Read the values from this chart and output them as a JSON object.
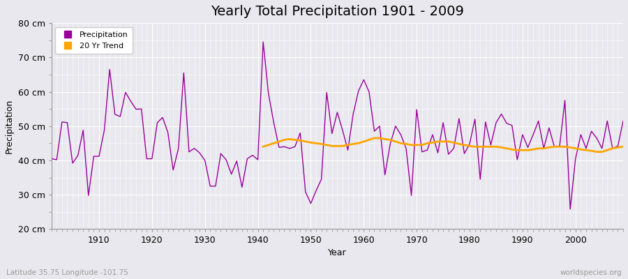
{
  "title": "Yearly Total Precipitation 1901 - 2009",
  "xlabel": "Year",
  "ylabel": "Precipitation",
  "subtitle": "Latitude 35.75 Longitude -101.75",
  "watermark": "worldspecies.org",
  "ylim": [
    20,
    80
  ],
  "yticks": [
    20,
    30,
    40,
    50,
    60,
    70,
    80
  ],
  "ytick_labels": [
    "20 cm",
    "30 cm",
    "40 cm",
    "50 cm",
    "60 cm",
    "70 cm",
    "80 cm"
  ],
  "xlim": [
    1901,
    2009
  ],
  "xticks": [
    1910,
    1920,
    1930,
    1940,
    1950,
    1960,
    1970,
    1980,
    1990,
    2000
  ],
  "precip_color": "#990099",
  "trend_color": "#FFA500",
  "bg_color": "#E8E8EE",
  "grid_color": "#FFFFFF",
  "years": [
    1901,
    1902,
    1903,
    1904,
    1905,
    1906,
    1907,
    1908,
    1909,
    1910,
    1911,
    1912,
    1913,
    1914,
    1915,
    1916,
    1917,
    1918,
    1919,
    1920,
    1921,
    1922,
    1923,
    1924,
    1925,
    1926,
    1927,
    1928,
    1929,
    1930,
    1931,
    1932,
    1933,
    1934,
    1935,
    1936,
    1937,
    1938,
    1939,
    1940,
    1941,
    1942,
    1943,
    1944,
    1945,
    1946,
    1947,
    1948,
    1949,
    1950,
    1951,
    1952,
    1953,
    1954,
    1955,
    1956,
    1957,
    1958,
    1959,
    1960,
    1961,
    1962,
    1963,
    1964,
    1965,
    1966,
    1967,
    1968,
    1969,
    1970,
    1971,
    1972,
    1973,
    1974,
    1975,
    1976,
    1977,
    1978,
    1979,
    1980,
    1981,
    1982,
    1983,
    1984,
    1985,
    1986,
    1987,
    1988,
    1989,
    1990,
    1991,
    1992,
    1993,
    1994,
    1995,
    1996,
    1997,
    1998,
    1999,
    2000,
    2001,
    2002,
    2003,
    2004,
    2005,
    2006,
    2007,
    2008,
    2009
  ],
  "precip": [
    40.5,
    40.2,
    51.2,
    51.0,
    39.2,
    41.4,
    48.8,
    29.8,
    41.2,
    41.2,
    48.8,
    66.5,
    53.4,
    52.8,
    59.8,
    57.2,
    54.9,
    55.0,
    40.5,
    40.5,
    51.0,
    52.5,
    48.2,
    37.2,
    43.5,
    65.5,
    42.5,
    43.5,
    42.2,
    40.0,
    32.5,
    32.5,
    42.0,
    40.2,
    36.0,
    39.8,
    32.2,
    40.5,
    41.5,
    40.2,
    74.5,
    59.5,
    51.0,
    43.8,
    44.0,
    43.5,
    44.0,
    48.0,
    30.8,
    27.5,
    31.2,
    34.5,
    59.8,
    47.8,
    54.0,
    48.8,
    43.0,
    53.5,
    60.2,
    63.5,
    60.0,
    48.5,
    50.0,
    35.8,
    44.8,
    50.0,
    47.5,
    43.5,
    29.8,
    54.8,
    42.5,
    43.0,
    47.5,
    42.2,
    51.0,
    41.8,
    43.5,
    52.2,
    42.0,
    44.8,
    52.0,
    34.5,
    51.2,
    44.5,
    51.0,
    53.5,
    50.8,
    50.2,
    40.2,
    47.5,
    43.8,
    47.5,
    51.5,
    43.5,
    49.5,
    44.0,
    44.2,
    57.5,
    25.8,
    40.5,
    47.5,
    43.5,
    48.5,
    46.5,
    43.5,
    51.5,
    43.5,
    44.2,
    51.5
  ],
  "trend_start_year": 1941,
  "trend": [
    44.0,
    44.5,
    45.0,
    45.5,
    46.0,
    46.2,
    46.0,
    45.8,
    45.5,
    45.2,
    45.0,
    44.8,
    44.5,
    44.2,
    44.2,
    44.2,
    44.5,
    44.8,
    45.0,
    45.5,
    46.0,
    46.5,
    46.5,
    46.2,
    46.0,
    45.5,
    45.0,
    44.8,
    44.5,
    44.5,
    44.5,
    45.0,
    45.2,
    45.5,
    45.5,
    45.5,
    45.2,
    44.8,
    44.5,
    44.2,
    44.0,
    44.0,
    44.0,
    44.0,
    44.0,
    43.8,
    43.5,
    43.2,
    43.0,
    43.0,
    43.0,
    43.2,
    43.5,
    43.5,
    43.8,
    44.0,
    44.0,
    44.0,
    43.8,
    43.5,
    43.2,
    43.0,
    42.8,
    42.5,
    42.5,
    43.0,
    43.5,
    43.8,
    44.0
  ],
  "subtitle_color": "#999999",
  "watermark_color": "#999999",
  "title_fontsize": 14,
  "axis_label_fontsize": 9,
  "tick_fontsize": 9
}
